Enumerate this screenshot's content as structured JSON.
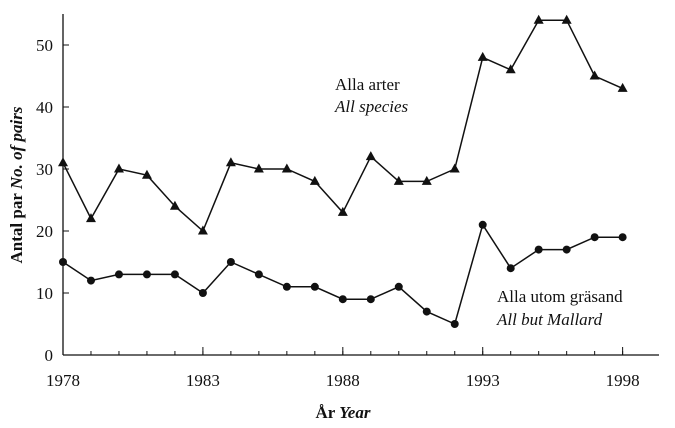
{
  "chart_data": {
    "type": "line",
    "xlabel": {
      "text": "År",
      "italic": "Year"
    },
    "ylabel": {
      "text": "Antal par",
      "italic": "No. of pairs"
    },
    "x": [
      1978,
      1979,
      1980,
      1981,
      1982,
      1983,
      1984,
      1985,
      1986,
      1987,
      1988,
      1989,
      1990,
      1991,
      1992,
      1993,
      1994,
      1995,
      1996,
      1997,
      1998
    ],
    "series": [
      {
        "name": "Alla arter",
        "name_italic": "All species",
        "color": "#111111",
        "marker": "triangle",
        "values": [
          31,
          22,
          30,
          29,
          24,
          20,
          31,
          30,
          30,
          28,
          23,
          32,
          28,
          28,
          30,
          48,
          46,
          54,
          54,
          45,
          43
        ]
      },
      {
        "name": "Alla utom gräsand",
        "name_italic": "All but Mallard",
        "color": "#111111",
        "marker": "circle",
        "values": [
          15,
          12,
          13,
          13,
          13,
          10,
          15,
          13,
          11,
          11,
          9,
          9,
          11,
          7,
          5,
          21,
          14,
          17,
          17,
          19,
          19
        ]
      }
    ],
    "xlim": [
      1978,
      1999.3
    ],
    "xticks": [
      1978,
      1983,
      1988,
      1993,
      1998
    ],
    "ylim": [
      0,
      55
    ],
    "yticks": [
      0,
      10,
      20,
      30,
      40,
      50
    ],
    "grid": false
  }
}
